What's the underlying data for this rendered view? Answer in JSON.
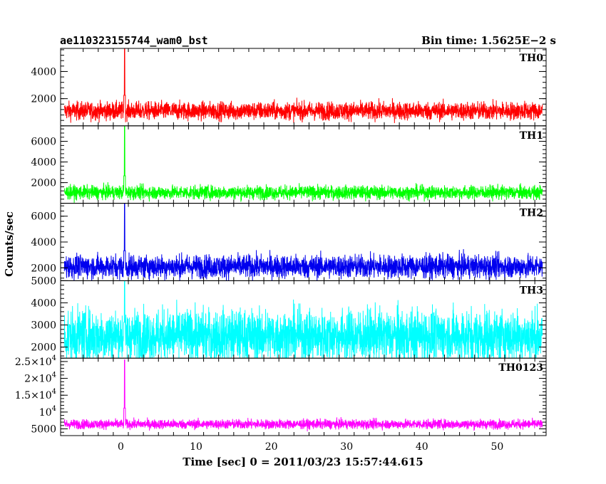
{
  "chart_data": {
    "type": "line",
    "title": "ae110323155744_wam0_bst",
    "bin_time_label": "Bin time: 1.5625E−2 s",
    "xlabel": "Time [sec] 0 = 2011/03/23 15:57:44.615",
    "ylabel": "Counts/sec",
    "xlim": [
      -8,
      56.5
    ],
    "x_ticks": [
      0,
      10,
      20,
      30,
      40,
      50
    ],
    "x_tick_labels": [
      "0",
      "10",
      "20",
      "30",
      "40",
      "50"
    ],
    "data_x_range": [
      -7.5,
      56
    ],
    "burst_time": 0.5,
    "grid": false,
    "panels": [
      {
        "name": "TH0",
        "color": "#ff0000",
        "ylim": [
          0,
          5700
        ],
        "y_ticks": [
          2000,
          4000
        ],
        "y_tick_labels": [
          "2000",
          "4000"
        ],
        "background_mean": 1100,
        "background_spread": 330,
        "peak": 5700
      },
      {
        "name": "TH1",
        "color": "#00ff00",
        "ylim": [
          0,
          7500
        ],
        "y_ticks": [
          2000,
          4000,
          6000
        ],
        "y_tick_labels": [
          "2000",
          "4000",
          "6000"
        ],
        "background_mean": 1050,
        "background_spread": 330,
        "peak": 7500
      },
      {
        "name": "TH2",
        "color": "#0000ee",
        "ylim": [
          1000,
          7000
        ],
        "y_ticks": [
          2000,
          4000,
          6000
        ],
        "y_tick_labels": [
          "2000",
          "4000",
          "6000"
        ],
        "background_mean": 2100,
        "background_spread": 450,
        "peak": 7000
      },
      {
        "name": "TH3",
        "color": "#00ffff",
        "ylim": [
          1500,
          5000
        ],
        "y_ticks": [
          2000,
          3000,
          4000,
          5000
        ],
        "y_tick_labels": [
          "2000",
          "3000",
          "4000",
          "5000"
        ],
        "background_mean": 2500,
        "background_spread": 600,
        "peak": 5000
      },
      {
        "name": "TH0123",
        "color": "#ff00ff",
        "ylim": [
          3000,
          26000
        ],
        "y_ticks": [
          5000,
          10000,
          15000,
          20000,
          25000
        ],
        "y_tick_labels": [
          {
            "main": "5000",
            "sup": ""
          },
          {
            "main": "10",
            "sup": "4"
          },
          {
            "main": "1.5×10",
            "sup": "4"
          },
          {
            "main": "2×10",
            "sup": "4"
          },
          {
            "main": "2.5×10",
            "sup": "4"
          }
        ],
        "background_mean": 6400,
        "background_spread": 700,
        "peak": 25500
      }
    ]
  }
}
